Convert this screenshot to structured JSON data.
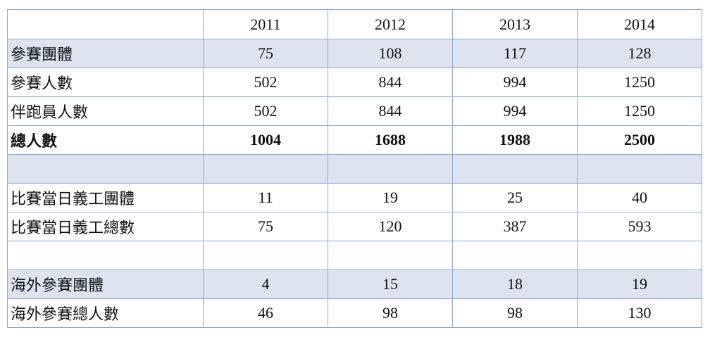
{
  "table": {
    "header": [
      "2011",
      "2012",
      "2013",
      "2014"
    ],
    "rows": [
      {
        "label": "參賽團體",
        "values": [
          75,
          108,
          117,
          128
        ]
      },
      {
        "label": "參賽人數",
        "values": [
          502,
          844,
          994,
          1250
        ]
      },
      {
        "label": "伴跑員人數",
        "values": [
          502,
          844,
          994,
          1250
        ]
      },
      {
        "label": "總人數",
        "values": [
          1004,
          1688,
          1988,
          2500
        ]
      },
      {
        "label": "比賽當日義工團體",
        "values": [
          11,
          19,
          25,
          40
        ]
      },
      {
        "label": "比賽當日義工總數",
        "values": [
          75,
          120,
          387,
          593
        ]
      },
      {
        "label": "海外參賽團體",
        "values": [
          4,
          15,
          18,
          19
        ]
      },
      {
        "label": "海外參賽總人數",
        "values": [
          46,
          98,
          98,
          130
        ]
      }
    ]
  }
}
